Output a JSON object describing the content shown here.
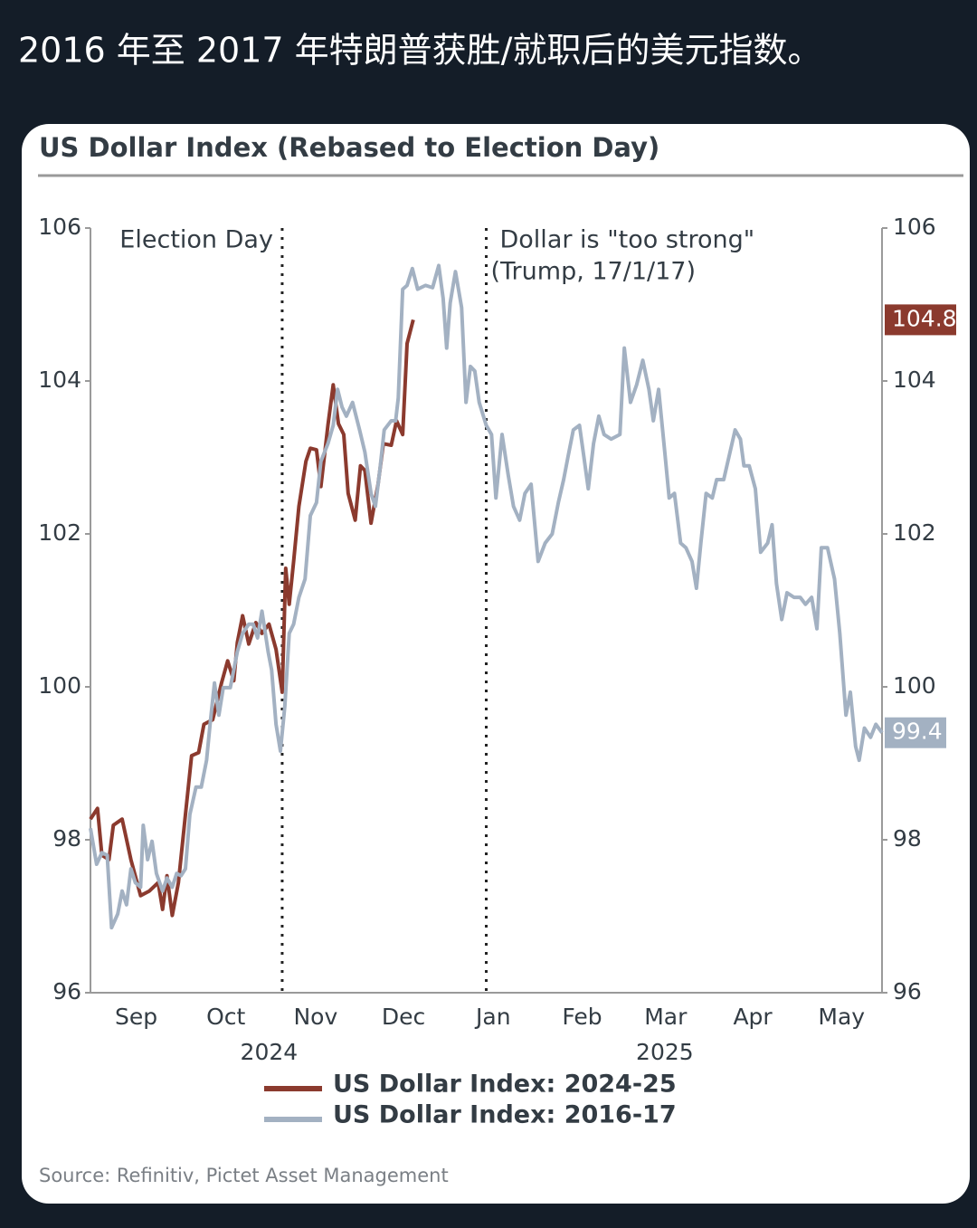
{
  "post": {
    "text": "2016 年至 2017 年特朗普获胜/就职后的美元指数。"
  },
  "chart_data": {
    "type": "line",
    "title": "US Dollar Index (Rebased to Election Day)",
    "source": "Source: Refinitiv, Pictet Asset Management",
    "xlim": [
      0,
      9
    ],
    "xticks": [
      {
        "value": 0.52,
        "label": "Sep"
      },
      {
        "value": 1.54,
        "label": "Oct"
      },
      {
        "value": 2.56,
        "label": "Nov"
      },
      {
        "value": 3.56,
        "label": "Dec"
      },
      {
        "value": 4.58,
        "label": "Jan"
      },
      {
        "value": 5.59,
        "label": "Feb"
      },
      {
        "value": 6.54,
        "label": "Mar"
      },
      {
        "value": 7.53,
        "label": "Apr"
      },
      {
        "value": 8.54,
        "label": "May"
      }
    ],
    "year_labels": [
      {
        "x": 2.03,
        "label": "2024"
      },
      {
        "x": 6.53,
        "label": "2025"
      }
    ],
    "ylim": [
      96,
      106
    ],
    "yticks": [
      96,
      98,
      100,
      102,
      104,
      106
    ],
    "y2lim": [
      96,
      106
    ],
    "y2ticks": [
      96,
      98,
      100,
      102,
      104,
      106
    ],
    "annotations": [
      {
        "x": 2.18,
        "text": [
          "Election Day"
        ],
        "text_side": "left"
      },
      {
        "x": 4.5,
        "text": [
          "Dollar is \"too strong\"",
          "(Trump, 17/1/17)"
        ],
        "text_side": "right"
      }
    ],
    "legend": "bottom",
    "series": [
      {
        "name": "US Dollar Index: 2024-25",
        "color": "#8b3a2e",
        "end_value": 104.8,
        "x": [
          0.0,
          0.08,
          0.13,
          0.21,
          0.26,
          0.36,
          0.46,
          0.57,
          0.67,
          0.77,
          0.82,
          0.87,
          0.93,
          1.0,
          1.08,
          1.15,
          1.23,
          1.29,
          1.39,
          1.49,
          1.56,
          1.63,
          1.67,
          1.73,
          1.8,
          1.88,
          1.95,
          2.03,
          2.11,
          2.18,
          2.22,
          2.26,
          2.31,
          2.37,
          2.45,
          2.5,
          2.57,
          2.62,
          2.7,
          2.76,
          2.82,
          2.88,
          2.93,
          3.01,
          3.07,
          3.12,
          3.19,
          3.27,
          3.33,
          3.42,
          3.48,
          3.55,
          3.6,
          3.67
        ],
        "values": [
          98.27,
          98.41,
          97.8,
          97.74,
          98.19,
          98.27,
          97.74,
          97.27,
          97.33,
          97.44,
          97.09,
          97.53,
          97.01,
          97.44,
          98.33,
          99.1,
          99.14,
          99.51,
          99.57,
          100.05,
          100.34,
          100.08,
          100.58,
          100.93,
          100.56,
          100.84,
          100.7,
          100.82,
          100.49,
          99.93,
          101.55,
          101.08,
          101.64,
          102.36,
          102.95,
          103.12,
          103.1,
          102.62,
          103.42,
          103.95,
          103.44,
          103.3,
          102.53,
          102.18,
          102.89,
          102.83,
          102.14,
          102.65,
          103.18,
          103.16,
          103.48,
          103.3,
          104.49,
          104.8
        ]
      },
      {
        "name": "US Dollar Index: 2016-17",
        "color": "#a3b1c2",
        "end_value": 99.4,
        "x": [
          0.0,
          0.07,
          0.13,
          0.19,
          0.24,
          0.31,
          0.36,
          0.41,
          0.46,
          0.51,
          0.57,
          0.6,
          0.65,
          0.7,
          0.75,
          0.82,
          0.87,
          0.93,
          0.98,
          1.03,
          1.08,
          1.13,
          1.2,
          1.26,
          1.32,
          1.36,
          1.41,
          1.46,
          1.51,
          1.59,
          1.67,
          1.73,
          1.8,
          1.85,
          1.9,
          1.95,
          2.02,
          2.06,
          2.11,
          2.16,
          2.21,
          2.26,
          2.31,
          2.37,
          2.44,
          2.5,
          2.57,
          2.62,
          2.7,
          2.76,
          2.81,
          2.86,
          2.91,
          2.98,
          3.06,
          3.12,
          3.19,
          3.24,
          3.29,
          3.34,
          3.42,
          3.47,
          3.5,
          3.55,
          3.6,
          3.66,
          3.72,
          3.81,
          3.89,
          3.96,
          4.01,
          4.05,
          4.09,
          4.15,
          4.22,
          4.27,
          4.32,
          4.37,
          4.42,
          4.5,
          4.56,
          4.61,
          4.68,
          4.75,
          4.81,
          4.88,
          4.94,
          5.01,
          5.09,
          5.17,
          5.25,
          5.32,
          5.38,
          5.43,
          5.49,
          5.56,
          5.61,
          5.66,
          5.72,
          5.78,
          5.84,
          5.92,
          6.02,
          6.07,
          6.14,
          6.21,
          6.28,
          6.35,
          6.4,
          6.46,
          6.53,
          6.58,
          6.64,
          6.71,
          6.77,
          6.84,
          6.89,
          6.94,
          7.0,
          7.07,
          7.12,
          7.2,
          7.26,
          7.33,
          7.39,
          7.43,
          7.49,
          7.56,
          7.62,
          7.7,
          7.75,
          7.8,
          7.86,
          7.92,
          8.0,
          8.07,
          8.13,
          8.2,
          8.26,
          8.31,
          8.38,
          8.46,
          8.52,
          8.59,
          8.64,
          8.7,
          8.74,
          8.8,
          8.87,
          8.93,
          9.0
        ],
        "values": [
          98.15,
          97.68,
          97.83,
          97.8,
          96.85,
          97.03,
          97.33,
          97.15,
          97.62,
          97.44,
          97.38,
          98.19,
          97.74,
          97.98,
          97.56,
          97.33,
          97.5,
          97.38,
          97.56,
          97.53,
          97.62,
          98.33,
          98.69,
          98.69,
          99.04,
          99.51,
          100.05,
          99.63,
          99.99,
          99.99,
          100.46,
          100.7,
          100.82,
          100.82,
          100.64,
          100.99,
          100.46,
          100.22,
          99.51,
          99.16,
          99.75,
          100.7,
          100.82,
          101.17,
          101.41,
          102.24,
          102.41,
          102.95,
          103.18,
          103.42,
          103.89,
          103.66,
          103.54,
          103.72,
          103.36,
          103.07,
          102.53,
          102.36,
          102.83,
          103.36,
          103.48,
          103.48,
          103.78,
          105.2,
          105.25,
          105.47,
          105.2,
          105.25,
          105.22,
          105.51,
          105.08,
          104.43,
          105.02,
          105.43,
          104.96,
          103.72,
          104.19,
          104.13,
          103.72,
          103.42,
          103.3,
          102.47,
          103.3,
          102.77,
          102.36,
          102.18,
          102.53,
          102.65,
          101.64,
          101.88,
          102.0,
          102.41,
          102.71,
          103.01,
          103.36,
          103.42,
          103.01,
          102.59,
          103.18,
          103.54,
          103.3,
          103.24,
          103.3,
          104.43,
          103.72,
          103.95,
          104.27,
          103.89,
          103.48,
          103.89,
          103.07,
          102.47,
          102.53,
          101.88,
          101.82,
          101.64,
          101.29,
          101.88,
          102.53,
          102.47,
          102.71,
          102.71,
          103.01,
          103.36,
          103.24,
          102.89,
          102.89,
          102.59,
          101.76,
          101.88,
          102.12,
          101.35,
          100.88,
          101.23,
          101.17,
          101.17,
          101.08,
          101.17,
          100.76,
          101.82,
          101.82,
          101.41,
          100.7,
          99.63,
          99.93,
          99.22,
          99.04,
          99.46,
          99.34,
          99.51,
          99.4
        ]
      }
    ]
  }
}
